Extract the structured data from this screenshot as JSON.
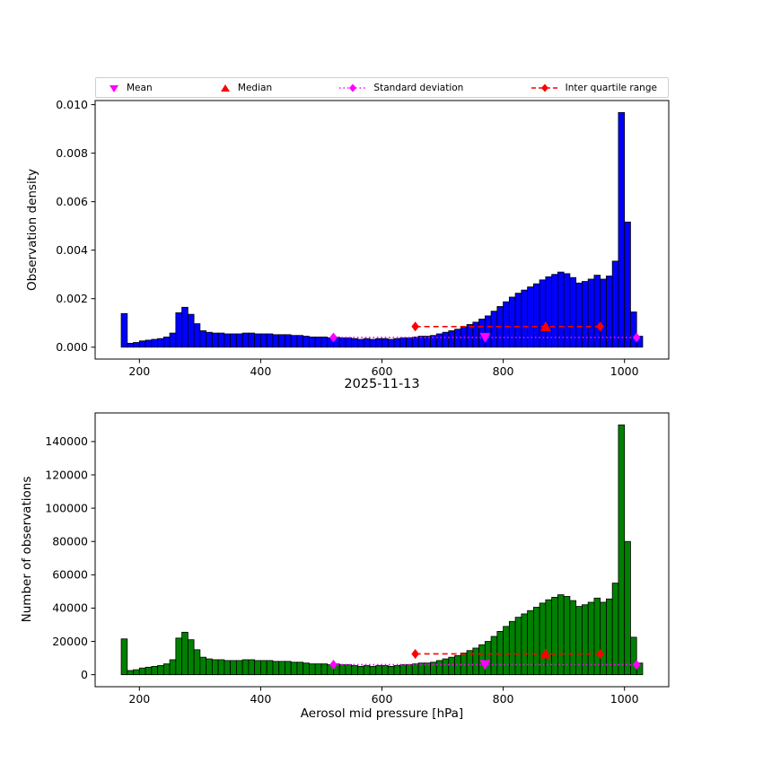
{
  "figure": {
    "date_title": "2025-11-13",
    "xlabel": "Aerosol mid pressure [hPa]",
    "background": "#ffffff"
  },
  "legend": {
    "items": [
      {
        "label": "Mean",
        "marker": "triangle-down",
        "color": "#ff00ff"
      },
      {
        "label": "Median",
        "marker": "triangle-up",
        "color": "#ff0000"
      },
      {
        "label": "Standard deviation",
        "marker": "diamond-dotted-line",
        "color": "#ff00ff"
      },
      {
        "label": "Inter quartile range",
        "marker": "diamond-dashed-line",
        "color": "#ff0000"
      }
    ]
  },
  "stats": {
    "mean": 770,
    "median": 870,
    "std_range": [
      520,
      1020
    ],
    "iqr_range": [
      655,
      960
    ]
  },
  "chart_data": [
    {
      "type": "bar",
      "title": "",
      "ylabel": "Observation density",
      "xlabel": "",
      "bar_color": "#0000ff",
      "edge_color": "#000000",
      "bin_start": 170,
      "bin_width": 10,
      "values": [
        0.001387,
        0.000161,
        0.000194,
        0.000258,
        0.00029,
        0.000323,
        0.000355,
        0.000419,
        0.000581,
        0.001419,
        0.001645,
        0.001355,
        0.000968,
        0.000677,
        0.000613,
        0.000581,
        0.000581,
        0.000548,
        0.000548,
        0.000548,
        0.000581,
        0.000581,
        0.000548,
        0.000548,
        0.000548,
        0.000516,
        0.000516,
        0.000516,
        0.000484,
        0.000484,
        0.000452,
        0.000419,
        0.000419,
        0.000419,
        0.000387,
        0.000419,
        0.000387,
        0.000387,
        0.000355,
        0.000323,
        0.000355,
        0.000323,
        0.000355,
        0.000355,
        0.000323,
        0.000355,
        0.000387,
        0.000387,
        0.000419,
        0.000452,
        0.000452,
        0.000484,
        0.000548,
        0.000613,
        0.000677,
        0.000742,
        0.000839,
        0.000935,
        0.001032,
        0.001161,
        0.00129,
        0.001484,
        0.001677,
        0.001871,
        0.002065,
        0.002226,
        0.002355,
        0.002484,
        0.002613,
        0.002774,
        0.002903,
        0.003,
        0.003097,
        0.003032,
        0.002871,
        0.002645,
        0.00271,
        0.002806,
        0.002968,
        0.002806,
        0.002935,
        0.003548,
        0.009677,
        0.005161,
        0.001452,
        0.000452
      ],
      "xlim": [
        127,
        1073
      ],
      "ylim": [
        -0.00049,
        0.01017
      ],
      "xticks": [
        200,
        400,
        600,
        800,
        1000
      ],
      "xtick_labels": [
        "200",
        "400",
        "600",
        "800",
        "1000"
      ],
      "yticks": [
        0,
        0.002,
        0.004,
        0.006,
        0.008,
        0.01
      ],
      "ytick_labels": [
        "0.000",
        "0.002",
        "0.004",
        "0.006",
        "0.008",
        "0.010"
      ],
      "marker_y": {
        "std_line": 0.0004,
        "iqr_line": 0.00085
      }
    },
    {
      "type": "bar",
      "title": "2025-11-13",
      "ylabel": "Number of observations",
      "xlabel": "Aerosol mid pressure [hPa]",
      "bar_color": "#008000",
      "edge_color": "#000000",
      "bin_start": 170,
      "bin_width": 10,
      "values": [
        21500,
        2500,
        3000,
        4000,
        4500,
        5000,
        5500,
        6500,
        9000,
        22000,
        25500,
        21000,
        15000,
        10500,
        9500,
        9000,
        9000,
        8500,
        8500,
        8500,
        9000,
        9000,
        8500,
        8500,
        8500,
        8000,
        8000,
        8000,
        7500,
        7500,
        7000,
        6500,
        6500,
        6500,
        6000,
        6500,
        6000,
        6000,
        5500,
        5000,
        5500,
        5000,
        5500,
        5500,
        5000,
        5500,
        6000,
        6000,
        6500,
        7000,
        7000,
        7500,
        8500,
        9500,
        10500,
        11500,
        13000,
        14500,
        16000,
        18000,
        20000,
        23000,
        26000,
        29000,
        32000,
        34500,
        36500,
        38500,
        40500,
        43000,
        45000,
        46500,
        48000,
        47000,
        44500,
        41000,
        42000,
        43500,
        46000,
        43500,
        45500,
        55000,
        150000,
        80000,
        22500,
        7000
      ],
      "xlim": [
        127,
        1073
      ],
      "ylim": [
        -7200,
        157200
      ],
      "xticks": [
        200,
        400,
        600,
        800,
        1000
      ],
      "xtick_labels": [
        "200",
        "400",
        "600",
        "800",
        "1000"
      ],
      "yticks": [
        0,
        20000,
        40000,
        60000,
        80000,
        100000,
        120000,
        140000
      ],
      "ytick_labels": [
        "0",
        "20000",
        "40000",
        "60000",
        "80000",
        "100000",
        "120000",
        "140000"
      ],
      "marker_y": {
        "std_line": 6000,
        "iqr_line": 12500
      }
    }
  ]
}
